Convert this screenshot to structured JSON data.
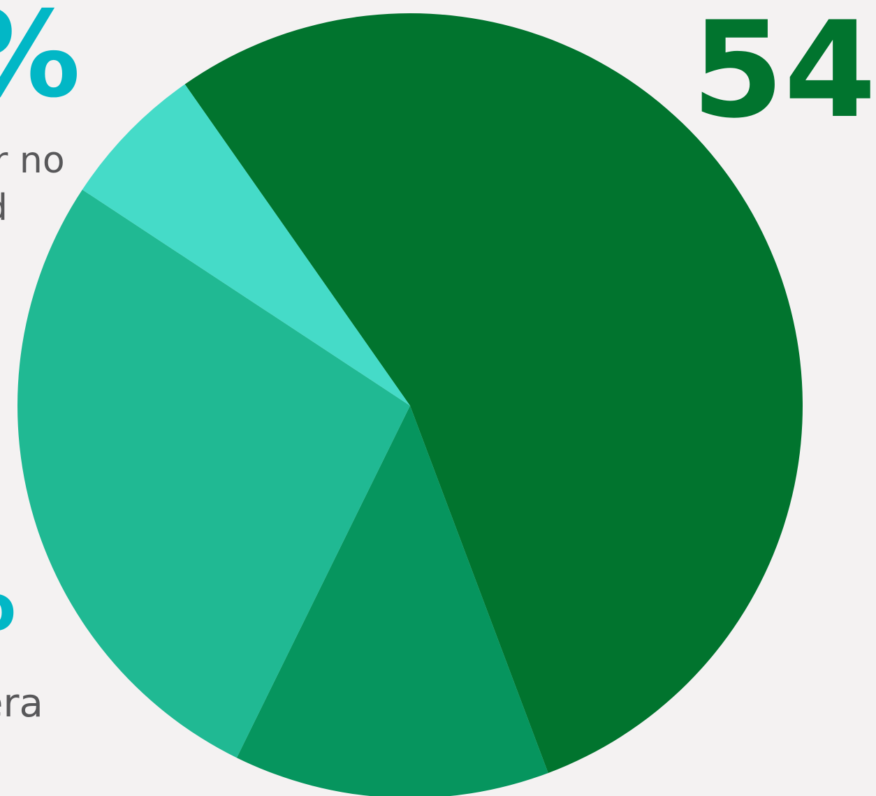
{
  "chart_data": {
    "type": "pie",
    "slices": [
      {
        "value": 54,
        "color": "#01742e"
      },
      {
        "value": 13,
        "color": "#06955e"
      },
      {
        "value": 27,
        "color": "#20b993"
      },
      {
        "value": 6,
        "color": "#45dbc8"
      }
    ]
  },
  "labels": {
    "top_left_percent": "%",
    "top_left_line_1": "r no",
    "top_left_line_2": "d",
    "right_value": "54",
    "bottom_left_glyph": "o",
    "bottom_left_text": "era"
  },
  "colors": {
    "background": "#f4f2f2",
    "accent_cyan": "#02b7c6",
    "text_gray": "#58585a",
    "dark_green": "#01742e"
  }
}
